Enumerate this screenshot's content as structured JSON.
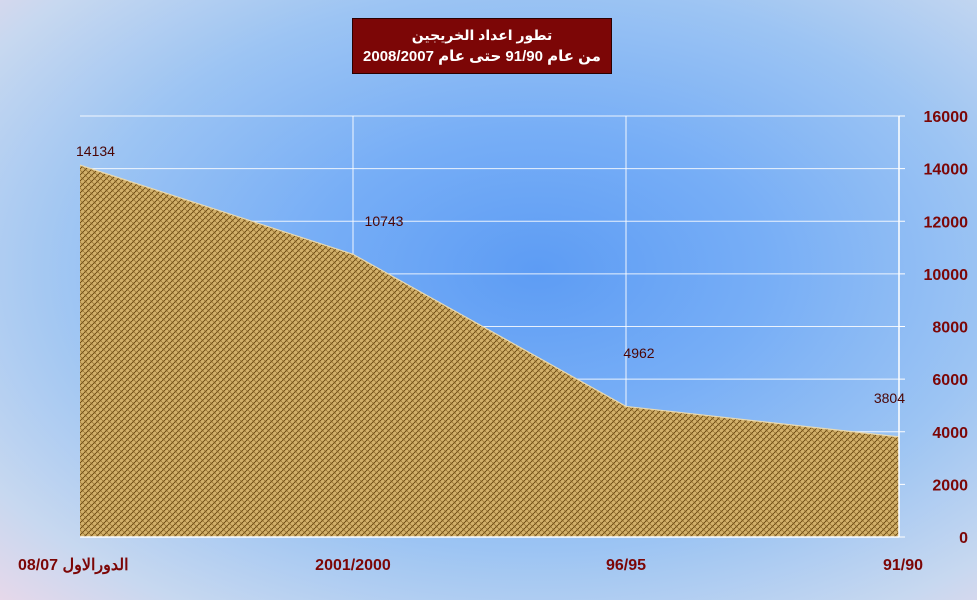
{
  "chart_data": {
    "type": "area",
    "title_line1": "تطور اعداد الخريجين",
    "title_line2": "من عام 91/90 حتى عام 2008/2007",
    "categories": [
      "الدورالاول 08/07",
      "2001/2000",
      "96/95",
      "91/90"
    ],
    "values": [
      14134,
      10743,
      4962,
      3804
    ],
    "ylim": [
      0,
      16000
    ],
    "yticks": [
      "0",
      "2000",
      "4000",
      "6000",
      "8000",
      "10000",
      "12000",
      "14000",
      "16000"
    ],
    "y_axis_side": "right",
    "grid": true,
    "legend": "none",
    "colors": {
      "fill_base": "#c9a45a",
      "fill_pattern": "#7a5618",
      "label": "#7c0606",
      "title_bg": "#7c0606"
    }
  }
}
